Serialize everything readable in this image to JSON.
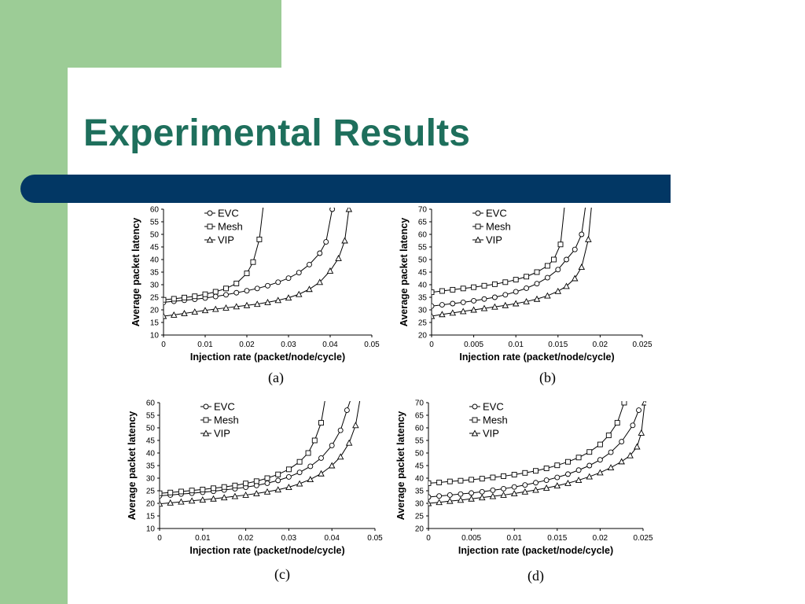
{
  "slide": {
    "title": "Experimental Results",
    "colors": {
      "green": "#9ccc96",
      "title": "#1e6f5c",
      "bar": "#023764"
    }
  },
  "chart_data": [
    {
      "panel": "a",
      "caption": "(a)",
      "type": "line",
      "xlabel": "Injection rate (packet/node/cycle)",
      "ylabel": "Average packet latency",
      "xlim": [
        0,
        0.05
      ],
      "ylim": [
        10,
        60
      ],
      "xticks": [
        "0",
        "0.01",
        "0.02",
        "0.03",
        "0.04",
        "0.05"
      ],
      "yticks": [
        "10",
        "15",
        "20",
        "25",
        "30",
        "35",
        "40",
        "45",
        "50",
        "55",
        "60"
      ],
      "legend": "top-left",
      "series": [
        {
          "name": "EVC",
          "marker": "circle",
          "x": [
            0,
            0.0025,
            0.005,
            0.0075,
            0.01,
            0.0125,
            0.015,
            0.0175,
            0.02,
            0.0225,
            0.025,
            0.0275,
            0.03,
            0.0325,
            0.035,
            0.0375,
            0.039,
            0.0405
          ],
          "y": [
            23,
            23.4,
            23.8,
            24.2,
            24.7,
            25.3,
            26,
            26.8,
            27.6,
            28.5,
            29.6,
            31,
            32.6,
            34.8,
            38,
            42.5,
            47,
            60
          ]
        },
        {
          "name": "Mesh",
          "marker": "square",
          "x": [
            0,
            0.0025,
            0.005,
            0.0075,
            0.01,
            0.0125,
            0.015,
            0.0175,
            0.02,
            0.0215,
            0.023,
            0.024
          ],
          "y": [
            24,
            24.4,
            24.9,
            25.4,
            26.2,
            27.2,
            28.5,
            30.5,
            34.5,
            39,
            48,
            62
          ]
        },
        {
          "name": "VIP",
          "marker": "triangle",
          "x": [
            0,
            0.0025,
            0.005,
            0.0075,
            0.01,
            0.0125,
            0.015,
            0.0175,
            0.02,
            0.0225,
            0.025,
            0.0275,
            0.03,
            0.0325,
            0.035,
            0.0375,
            0.04,
            0.042,
            0.0435,
            0.0445
          ],
          "y": [
            17.5,
            18,
            18.6,
            19.2,
            19.8,
            20.3,
            20.8,
            21.3,
            21.8,
            22.3,
            23,
            23.8,
            24.8,
            26.2,
            28.2,
            31,
            35.5,
            40.5,
            47.5,
            60
          ]
        }
      ]
    },
    {
      "panel": "b",
      "caption": "(b)",
      "type": "line",
      "xlabel": "Injection rate (packet/node/cycle)",
      "ylabel": "Average packet latency",
      "xlim": [
        0,
        0.025
      ],
      "ylim": [
        20,
        70
      ],
      "xticks": [
        "0",
        "0.005",
        "0.01",
        "0.015",
        "0.02",
        "0.025"
      ],
      "yticks": [
        "20",
        "25",
        "30",
        "35",
        "40",
        "45",
        "50",
        "55",
        "60",
        "65",
        "70"
      ],
      "legend": "top-left",
      "series": [
        {
          "name": "EVC",
          "marker": "circle",
          "x": [
            0,
            0.00125,
            0.0025,
            0.00375,
            0.005,
            0.00625,
            0.0075,
            0.00875,
            0.01,
            0.01125,
            0.0125,
            0.01375,
            0.015,
            0.016,
            0.017,
            0.0178,
            0.0183
          ],
          "y": [
            31.5,
            32,
            32.5,
            33,
            33.6,
            34.3,
            35,
            36,
            37.2,
            38.6,
            40.4,
            42.8,
            46,
            50,
            54,
            60,
            72
          ]
        },
        {
          "name": "Mesh",
          "marker": "square",
          "x": [
            0,
            0.00125,
            0.0025,
            0.00375,
            0.005,
            0.00625,
            0.0075,
            0.00875,
            0.01,
            0.01125,
            0.0125,
            0.01375,
            0.0145,
            0.0153,
            0.0158
          ],
          "y": [
            37,
            37.5,
            38,
            38.5,
            39,
            39.6,
            40.2,
            41,
            42,
            43.2,
            45,
            47.5,
            50,
            56,
            72
          ]
        },
        {
          "name": "VIP",
          "marker": "triangle",
          "x": [
            0,
            0.00125,
            0.0025,
            0.00375,
            0.005,
            0.00625,
            0.0075,
            0.00875,
            0.01,
            0.01125,
            0.0125,
            0.01375,
            0.015,
            0.016,
            0.017,
            0.0178,
            0.0186,
            0.019
          ],
          "y": [
            27.5,
            28.2,
            28.8,
            29.4,
            30,
            30.6,
            31.2,
            31.8,
            32.5,
            33.3,
            34.3,
            35.6,
            37.4,
            39.4,
            42.5,
            47,
            58,
            72
          ]
        }
      ]
    },
    {
      "panel": "c",
      "caption": "(c)",
      "type": "line",
      "xlabel": "Injection rate (packet/node/cycle)",
      "ylabel": "Average packet latency",
      "xlim": [
        0,
        0.05
      ],
      "ylim": [
        10,
        60
      ],
      "xticks": [
        "0",
        "0.01",
        "0.02",
        "0.03",
        "0.04",
        "0.05"
      ],
      "yticks": [
        "10",
        "15",
        "20",
        "25",
        "30",
        "35",
        "40",
        "45",
        "50",
        "55",
        "60"
      ],
      "legend": "top-left",
      "series": [
        {
          "name": "EVC",
          "marker": "circle",
          "x": [
            0,
            0.0025,
            0.005,
            0.0075,
            0.01,
            0.0125,
            0.015,
            0.0175,
            0.02,
            0.0225,
            0.025,
            0.0275,
            0.03,
            0.0325,
            0.035,
            0.0375,
            0.04,
            0.042,
            0.0435,
            0.0445
          ],
          "y": [
            23,
            23.3,
            23.7,
            24,
            24.4,
            24.8,
            25.3,
            25.8,
            26.4,
            27.1,
            28,
            29.1,
            30.5,
            32.3,
            34.7,
            38,
            43,
            49,
            57,
            62
          ]
        },
        {
          "name": "Mesh",
          "marker": "square",
          "x": [
            0,
            0.0025,
            0.005,
            0.0075,
            0.01,
            0.0125,
            0.015,
            0.0175,
            0.02,
            0.0225,
            0.025,
            0.0275,
            0.03,
            0.0325,
            0.0345,
            0.036,
            0.0375,
            0.0385
          ],
          "y": [
            24,
            24.3,
            24.7,
            25.1,
            25.5,
            26,
            26.5,
            27.1,
            27.9,
            28.8,
            30,
            31.5,
            33.5,
            36.5,
            40,
            45,
            52,
            62
          ]
        },
        {
          "name": "VIP",
          "marker": "triangle",
          "x": [
            0,
            0.0025,
            0.005,
            0.0075,
            0.01,
            0.0125,
            0.015,
            0.0175,
            0.02,
            0.0225,
            0.025,
            0.0275,
            0.03,
            0.0325,
            0.035,
            0.0375,
            0.04,
            0.042,
            0.044,
            0.0455,
            0.0465
          ],
          "y": [
            19.8,
            20.2,
            20.6,
            21,
            21.4,
            21.8,
            22.3,
            22.8,
            23.3,
            23.9,
            24.6,
            25.4,
            26.4,
            27.8,
            29.5,
            31.8,
            35,
            38.5,
            44,
            51,
            61
          ]
        }
      ]
    },
    {
      "panel": "d",
      "caption": "(d)",
      "type": "line",
      "xlabel": "Injection rate (packet/node/cycle)",
      "ylabel": "Average packet latency",
      "xlim": [
        0,
        0.025
      ],
      "ylim": [
        20,
        70
      ],
      "xticks": [
        "0",
        "0.005",
        "0.01",
        "0.015",
        "0.02",
        "0.025"
      ],
      "yticks": [
        "20",
        "25",
        "30",
        "35",
        "40",
        "45",
        "50",
        "55",
        "60",
        "65",
        "70"
      ],
      "legend": "top-left",
      "series": [
        {
          "name": "EVC",
          "marker": "circle",
          "x": [
            0,
            0.00125,
            0.0025,
            0.00375,
            0.005,
            0.00625,
            0.0075,
            0.00875,
            0.01,
            0.01125,
            0.0125,
            0.01375,
            0.015,
            0.01625,
            0.0175,
            0.01875,
            0.02,
            0.02125,
            0.0225,
            0.0238,
            0.0245
          ],
          "y": [
            32.5,
            32.9,
            33.3,
            33.7,
            34.1,
            34.6,
            35.2,
            35.8,
            36.5,
            37.3,
            38.2,
            39.2,
            40.3,
            41.6,
            43.2,
            45,
            47.3,
            50.3,
            54.5,
            61,
            67
          ]
        },
        {
          "name": "Mesh",
          "marker": "square",
          "x": [
            0,
            0.00125,
            0.0025,
            0.00375,
            0.005,
            0.00625,
            0.0075,
            0.00875,
            0.01,
            0.01125,
            0.0125,
            0.01375,
            0.015,
            0.01625,
            0.0175,
            0.01875,
            0.02,
            0.021,
            0.022,
            0.0228
          ],
          "y": [
            38,
            38.3,
            38.7,
            39,
            39.4,
            39.8,
            40.3,
            40.8,
            41.4,
            42.1,
            42.9,
            43.9,
            45.1,
            46.5,
            48.2,
            50.4,
            53.4,
            57,
            62,
            70
          ]
        },
        {
          "name": "VIP",
          "marker": "triangle",
          "x": [
            0,
            0.00125,
            0.0025,
            0.00375,
            0.005,
            0.00625,
            0.0075,
            0.00875,
            0.01,
            0.01125,
            0.0125,
            0.01375,
            0.015,
            0.01625,
            0.0175,
            0.01875,
            0.02,
            0.02125,
            0.0225,
            0.0235,
            0.0243,
            0.0248,
            0.0252
          ],
          "y": [
            30,
            30.4,
            30.9,
            31.3,
            31.8,
            32.3,
            32.8,
            33.3,
            33.9,
            34.6,
            35.3,
            36.1,
            37,
            38,
            39.2,
            40.6,
            42.2,
            44.2,
            46.6,
            49,
            52.5,
            58,
            70
          ]
        }
      ]
    }
  ]
}
